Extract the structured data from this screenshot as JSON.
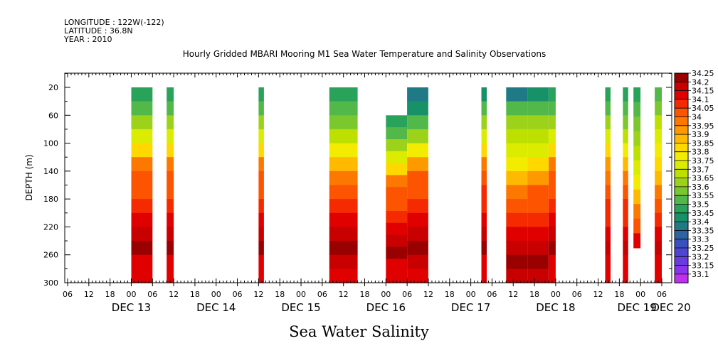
{
  "header": {
    "longitude_label": "LONGITUDE : 122W(-122)",
    "latitude_label": "LATITUDE : 36.8N",
    "year_label": "YEAR : 2010"
  },
  "chart_title": "Hourly Gridded MBARI Mooring M1 Sea Water Temperature and Salinity Observations",
  "variable_title": "Sea Water Salinity",
  "chart_data": {
    "type": "heatmap",
    "title": "Hourly Gridded MBARI Mooring M1 Sea Water Temperature and Salinity Observations",
    "xlabel": "",
    "ylabel": "DEPTH (m)",
    "x_hour_ticks": [
      "06",
      "12",
      "18",
      "00",
      "06",
      "12",
      "18",
      "00",
      "06",
      "12",
      "18",
      "00",
      "06",
      "12",
      "18",
      "00",
      "06",
      "12",
      "18",
      "00",
      "06",
      "12",
      "18",
      "00",
      "06",
      "12",
      "18",
      "00",
      "06"
    ],
    "x_day_labels": [
      "DEC 13",
      "DEC 14",
      "DEC 15",
      "DEC 16",
      "DEC 17",
      "DEC 18",
      "DEC 19",
      "DEC 20"
    ],
    "x_range_hours": [
      0,
      168
    ],
    "y_ticks": [
      20,
      60,
      100,
      140,
      180,
      220,
      260,
      300
    ],
    "ylim": [
      0,
      300
    ],
    "y_inverted": true,
    "colorbar": {
      "levels": [
        "34.25",
        "34.2",
        "34.15",
        "34.1",
        "34.05",
        "34",
        "33.95",
        "33.9",
        "33.85",
        "33.8",
        "33.75",
        "33.7",
        "33.65",
        "33.6",
        "33.55",
        "33.5",
        "33.45",
        "33.4",
        "33.35",
        "33.3",
        "33.25",
        "33.2",
        "33.15",
        "33.1"
      ],
      "colors": [
        "#990000",
        "#c80000",
        "#e00000",
        "#f52a00",
        "#fc5400",
        "#fd7800",
        "#fe9a00",
        "#ffba00",
        "#ffd800",
        "#f4ec00",
        "#dcec00",
        "#bde000",
        "#9dd21a",
        "#7bc82e",
        "#52b84a",
        "#2aa35a",
        "#179168",
        "#1f7a86",
        "#2d62a3",
        "#3a50bf",
        "#4f44d4",
        "#6a3ce0",
        "#8a34eb",
        "#c030f0"
      ]
    },
    "columns": [
      {
        "start": 18,
        "end": 24,
        "top": 20,
        "bottom": 300,
        "profile": [
          33.5,
          33.55,
          33.65,
          33.75,
          33.85,
          34.0,
          34.05,
          34.05,
          34.1,
          34.15,
          34.2,
          34.25,
          34.15,
          34.15
        ]
      },
      {
        "start": 28,
        "end": 30,
        "top": 20,
        "bottom": 300,
        "profile": [
          33.5,
          33.55,
          33.65,
          33.75,
          33.85,
          34.0,
          34.05,
          34.05,
          34.1,
          34.15,
          34.2,
          34.25,
          34.15,
          34.15
        ]
      },
      {
        "start": 54,
        "end": 55.5,
        "top": 20,
        "bottom": 300,
        "profile": [
          33.5,
          33.55,
          33.65,
          33.75,
          33.85,
          34.0,
          34.05,
          34.05,
          34.1,
          34.15,
          34.2,
          34.25,
          34.15,
          34.15
        ]
      },
      {
        "start": 74,
        "end": 82,
        "top": 20,
        "bottom": 300,
        "profile": [
          33.5,
          33.55,
          33.6,
          33.7,
          33.8,
          33.9,
          34.0,
          34.05,
          34.1,
          34.15,
          34.2,
          34.25,
          34.2,
          34.15
        ]
      },
      {
        "start": 90,
        "end": 96,
        "top": 60,
        "bottom": 300,
        "profile": [
          33.5,
          33.55,
          33.65,
          33.75,
          33.85,
          34.0,
          34.05,
          34.05,
          34.1,
          34.15,
          34.2,
          34.25,
          34.15,
          34.15
        ]
      },
      {
        "start": 96,
        "end": 102,
        "top": 20,
        "bottom": 300,
        "profile": [
          33.4,
          33.45,
          33.55,
          33.65,
          33.8,
          33.95,
          34.05,
          34.05,
          34.1,
          34.15,
          34.2,
          34.25,
          34.2,
          34.15
        ]
      },
      {
        "start": 117,
        "end": 118.5,
        "top": 20,
        "bottom": 300,
        "profile": [
          33.45,
          33.55,
          33.65,
          33.75,
          33.85,
          34.0,
          34.05,
          34.1,
          34.1,
          34.15,
          34.2,
          34.25,
          34.15,
          34.15
        ]
      },
      {
        "start": 124,
        "end": 130,
        "top": 20,
        "bottom": 300,
        "profile": [
          33.4,
          33.55,
          33.65,
          33.7,
          33.75,
          33.8,
          33.9,
          34.0,
          34.05,
          34.1,
          34.15,
          34.2,
          34.25,
          34.2
        ]
      },
      {
        "start": 130,
        "end": 136,
        "top": 20,
        "bottom": 300,
        "profile": [
          33.45,
          33.55,
          33.65,
          33.7,
          33.75,
          33.85,
          33.95,
          34.05,
          34.05,
          34.1,
          34.15,
          34.2,
          34.25,
          34.2
        ]
      },
      {
        "start": 136,
        "end": 138,
        "top": 20,
        "bottom": 300,
        "profile": [
          33.5,
          33.55,
          33.65,
          33.75,
          33.85,
          34.0,
          34.05,
          34.05,
          34.1,
          34.15,
          34.2,
          34.25,
          34.15,
          34.15
        ]
      },
      {
        "start": 152,
        "end": 153.5,
        "top": 20,
        "bottom": 300,
        "profile": [
          33.5,
          33.55,
          33.65,
          33.75,
          33.85,
          33.95,
          34.0,
          34.05,
          34.1,
          34.1,
          34.15,
          34.2,
          34.15,
          34.15
        ]
      },
      {
        "start": 157,
        "end": 158.5,
        "top": 20,
        "bottom": 300,
        "profile": [
          33.5,
          33.55,
          33.6,
          33.7,
          33.8,
          33.9,
          34.0,
          34.05,
          34.1,
          34.1,
          34.15,
          34.2,
          34.15,
          34.15
        ]
      },
      {
        "start": 160,
        "end": 162,
        "top": 20,
        "bottom": 250,
        "profile": [
          33.5,
          33.55,
          33.6,
          33.65,
          33.7,
          33.75,
          33.8,
          33.9,
          34.0,
          34.05,
          34.15
        ]
      },
      {
        "start": 166,
        "end": 168,
        "top": 20,
        "bottom": 300,
        "profile": [
          33.55,
          33.6,
          33.7,
          33.75,
          33.8,
          33.85,
          33.9,
          34.0,
          34.05,
          34.1,
          34.15,
          34.2,
          34.15,
          34.15
        ]
      }
    ]
  }
}
